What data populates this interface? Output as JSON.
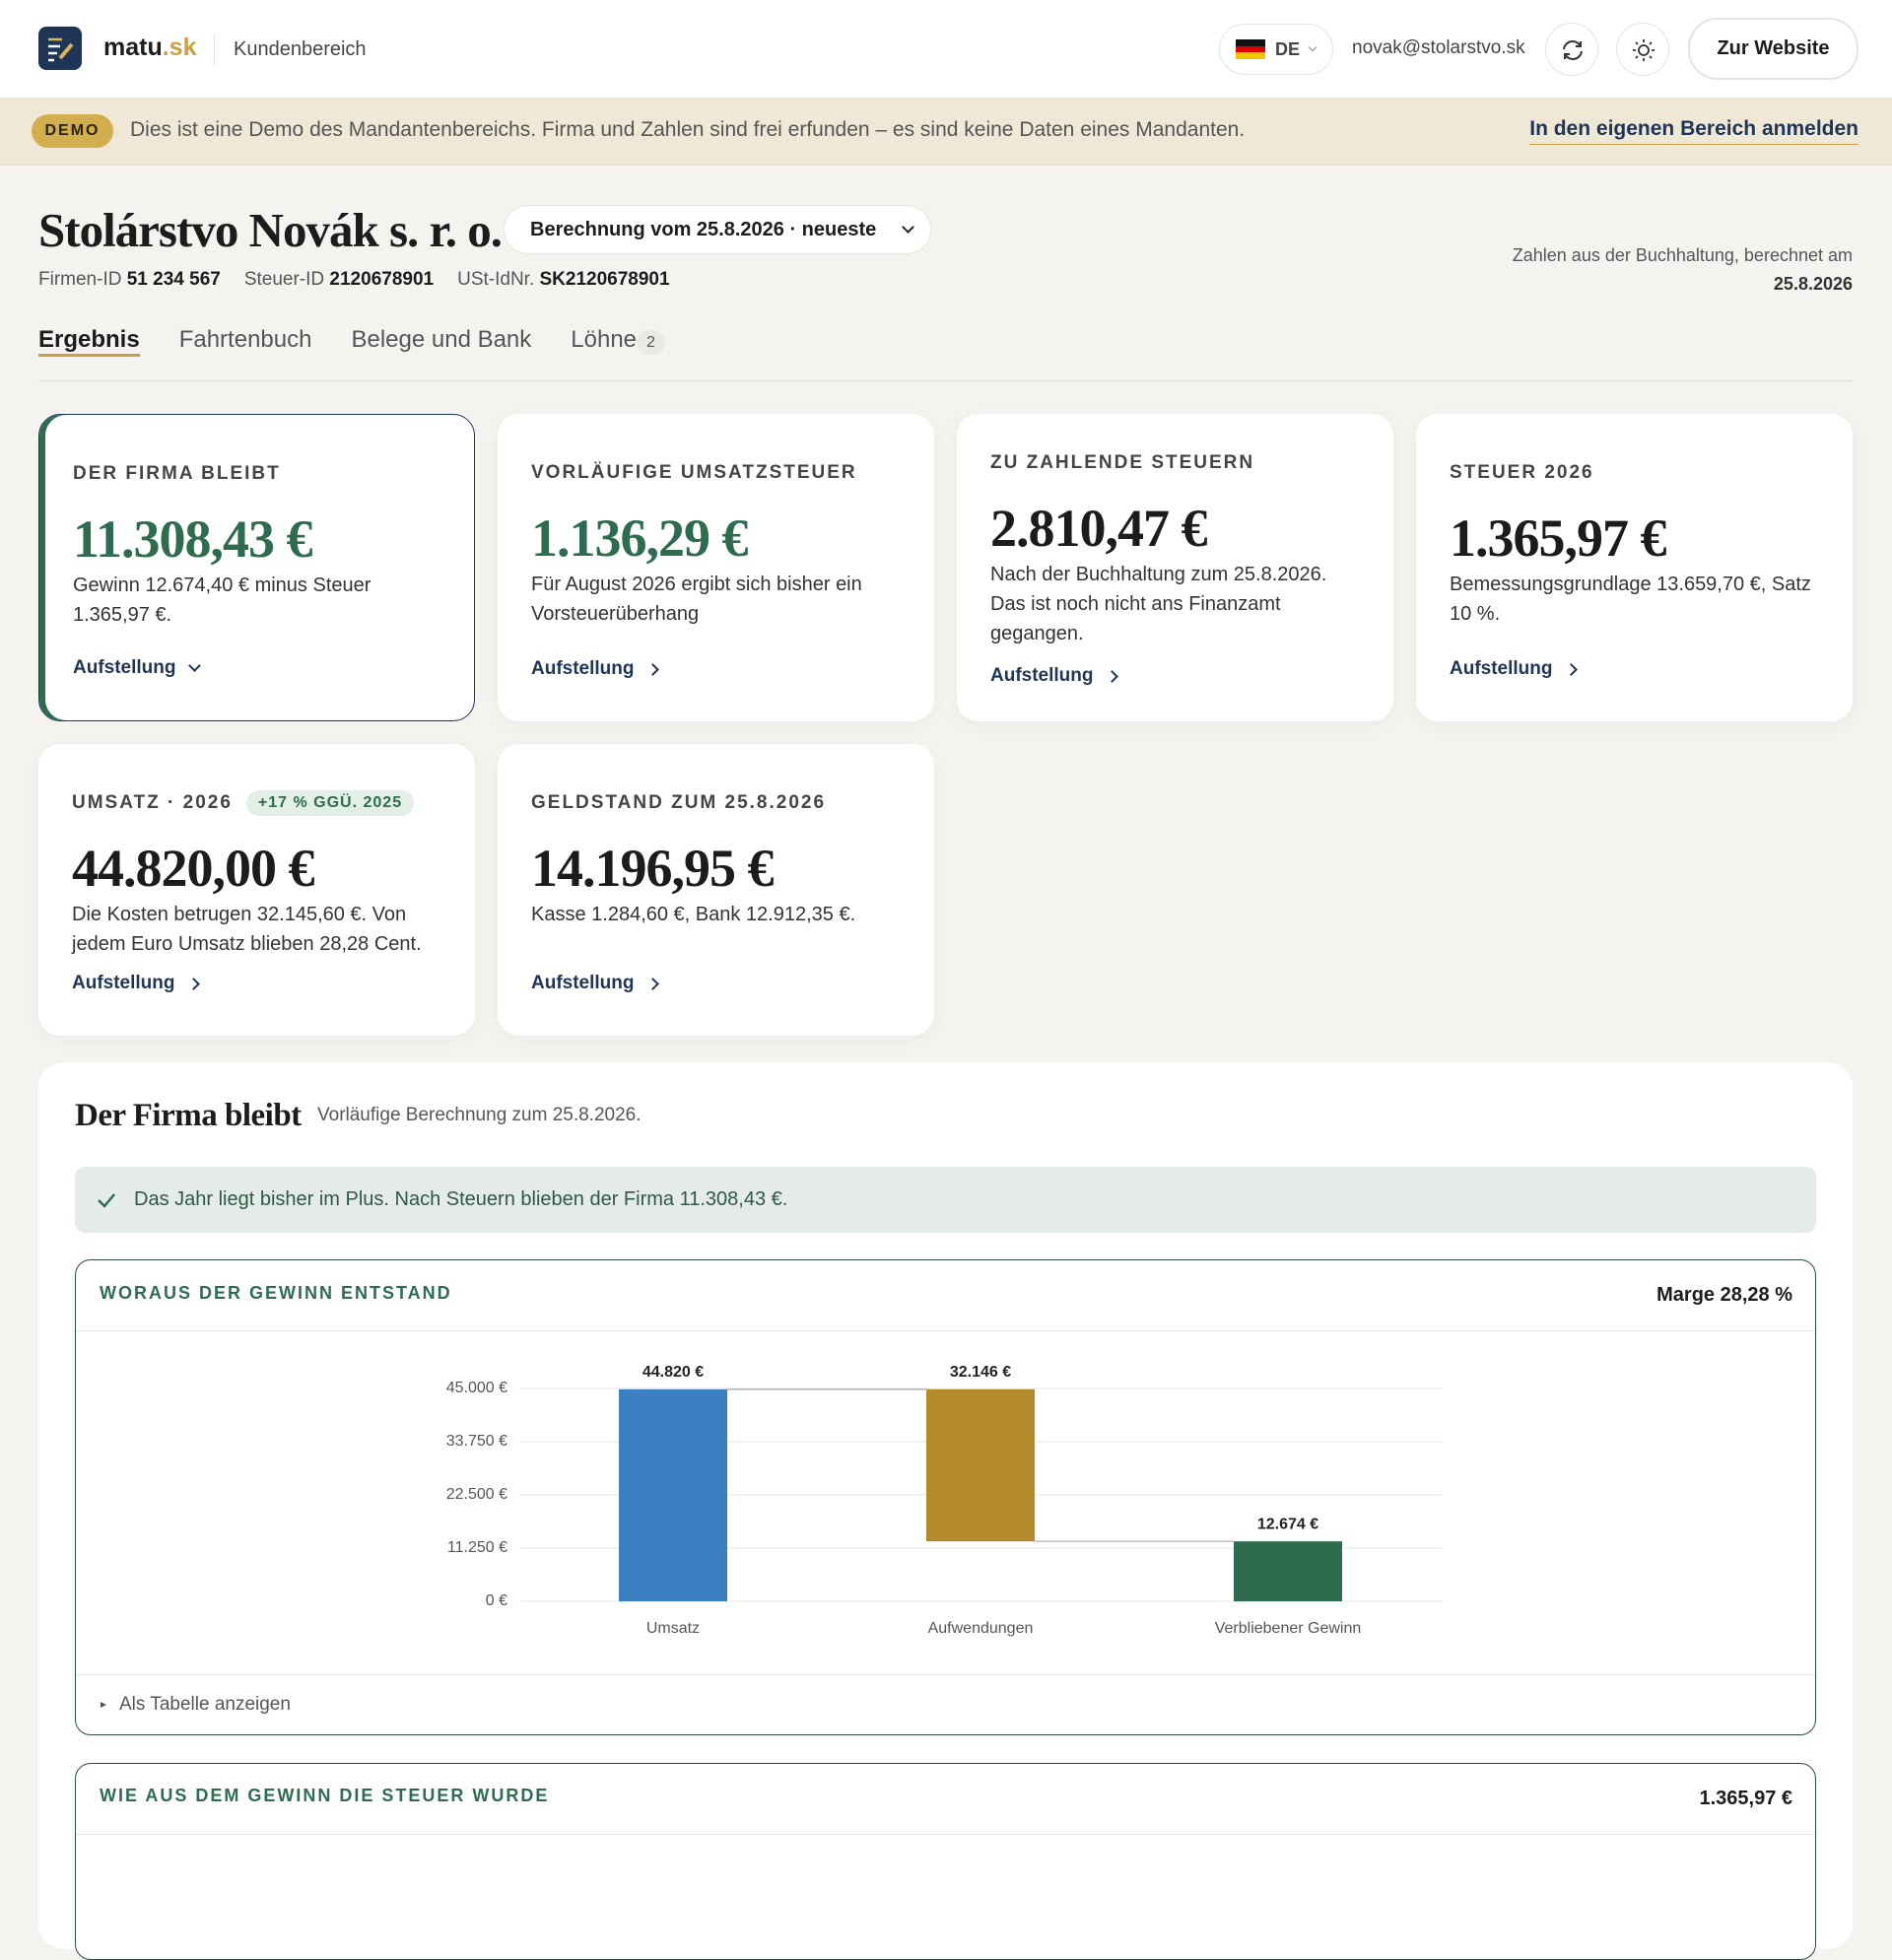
{
  "header": {
    "brand": "matu",
    "brand_tld": ".sk",
    "section": "Kundenbereich",
    "language": "DE",
    "email": "novak@stolarstvo.sk",
    "website_button": "Zur Website"
  },
  "demo_banner": {
    "badge": "DEMO",
    "text": "Dies ist eine Demo des Mandantenbereichs. Firma und Zahlen sind frei erfunden – es sind keine Daten eines Mandanten.",
    "link": "In den eigenen Bereich anmelden"
  },
  "company": {
    "name": "Stolárstvo Novák s. r. o.",
    "calculation_select": "Berechnung vom 25.8.2026 · neueste",
    "ids": [
      {
        "label": "Firmen-ID",
        "value": "51 234 567"
      },
      {
        "label": "Steuer-ID",
        "value": "2120678901"
      },
      {
        "label": "USt-IdNr.",
        "value": "SK2120678901"
      }
    ],
    "source_note": "Zahlen aus der Buchhaltung, berechnet am",
    "source_date": "25.8.2026"
  },
  "tabs": [
    {
      "label": "Ergebnis"
    },
    {
      "label": "Fahrtenbuch"
    },
    {
      "label": "Belege und Bank"
    },
    {
      "label": "Löhne",
      "badge": "2"
    }
  ],
  "cards": [
    {
      "title": "DER FIRMA BLEIBT",
      "amount": "11.308,43 €",
      "text": "Gewinn 12.674,40 € minus Steuer 1.365,97 €.",
      "link": "Aufstellung"
    },
    {
      "title": "VORLÄUFIGE UMSATZSTEUER",
      "amount": "1.136,29 €",
      "text": "Für August 2026 ergibt sich bisher ein Vorsteuerüberhang",
      "link": "Aufstellung"
    },
    {
      "title": "ZU ZAHLENDE STEUERN",
      "amount": "2.810,47 €",
      "text": "Nach der Buchhaltung zum 25.8.2026. Das ist noch nicht ans Finanzamt gegangen.",
      "link": "Aufstellung"
    },
    {
      "title": "STEUER 2026",
      "amount": "1.365,97 €",
      "text": "Bemessungsgrundlage 13.659,70 €, Satz 10 %.",
      "link": "Aufstellung"
    },
    {
      "title": "UMSATZ · 2026",
      "badge": "+17 % GGÜ. 2025",
      "amount": "44.820,00 €",
      "text": "Die Kosten betrugen 32.145,60 €. Von jedem Euro Umsatz blieben 28,28 Cent.",
      "link": "Aufstellung"
    },
    {
      "title": "GELDSTAND ZUM 25.8.2026",
      "amount": "14.196,95 €",
      "text": "Kasse 1.284,60 €, Bank 12.912,35 €.",
      "link": "Aufstellung"
    }
  ],
  "panel": {
    "title": "Der Firma bleibt",
    "subtitle": "Vorläufige Berechnung zum 25.8.2026.",
    "notice": "Das Jahr liegt bisher im Plus. Nach Steuern blieben der Firma 11.308,43 €.",
    "chart_section": {
      "title": "WORAUS DER GEWINN ENTSTAND",
      "margin": "Marge 28,28 %",
      "table_toggle": "Als Tabelle anzeigen"
    },
    "next_section": {
      "title": "WIE AUS DEM GEWINN DIE STEUER WURDE",
      "amount": "1.365,97 €"
    }
  },
  "chart_data": {
    "type": "waterfall",
    "categories": [
      "Umsatz",
      "Aufwendungen",
      "Verbliebener Gewinn"
    ],
    "values": [
      44820,
      32146,
      12674
    ],
    "value_labels": [
      "44.820 €",
      "32.146 €",
      "12.674 €"
    ],
    "measures": [
      "total",
      "decrease",
      "total"
    ],
    "colors": [
      "#3b7fc0",
      "#b38b2c",
      "#2e6b4f"
    ],
    "ylim": [
      0,
      45000
    ],
    "yticks": [
      {
        "value": 0,
        "label": "0 €"
      },
      {
        "value": 11250,
        "label": "11.250 €"
      },
      {
        "value": 22500,
        "label": "22.500 €"
      },
      {
        "value": 33750,
        "label": "33.750 €"
      },
      {
        "value": 45000,
        "label": "45.000 €"
      }
    ],
    "grid": true
  }
}
